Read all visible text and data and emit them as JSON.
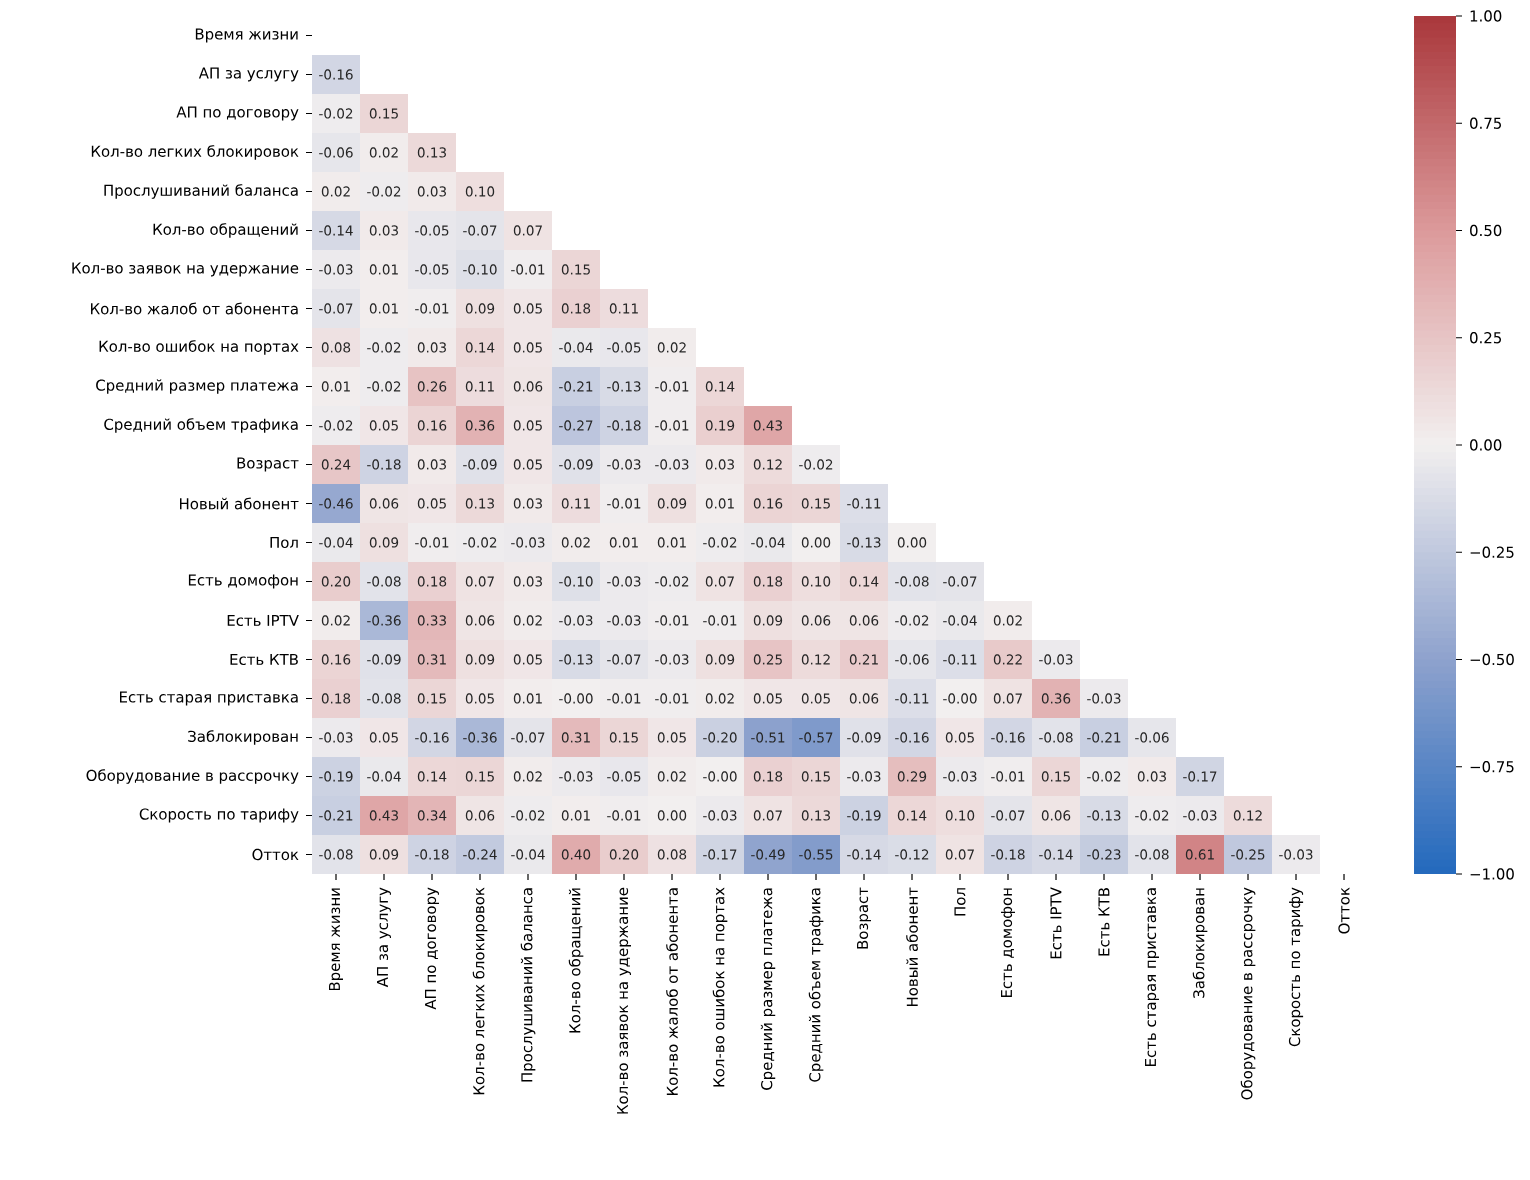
{
  "chart_data": {
    "type": "heatmap",
    "categories": [
      "Время жизни",
      "АП за услугу",
      "АП по договору",
      "Кол-во легких блокировок",
      "Прослушиваний баланса",
      "Кол-во обращений",
      "Кол-во заявок на удержание",
      "Кол-во жалоб от абонента",
      "Кол-во ошибок на портах",
      "Средний размер платежа",
      "Средний объем трафика",
      "Возраст",
      "Новый абонент",
      "Пол",
      "Есть домофон",
      "Есть IPTV",
      "Есть КТВ",
      "Есть старая приставка",
      "Заблокирован",
      "Оборудование в рассрочку",
      "Скорость по тарифу",
      "Отток"
    ],
    "y_categories": [
      "Время жизни",
      "АП за услугу",
      "АП по договору",
      "Кол-во легких блокировок",
      "Прослушиваний баланса",
      "Кол-во обращений",
      "Кол-во заявок на удержание",
      "Кол-во жалоб от абонента",
      "Кол-во ошибок на портах",
      "Средний размер платежа",
      "Средний объем трафика",
      "Возраст",
      "Новый абонент",
      "Пол",
      "Есть домофон",
      "Есть IPTV",
      "Есть КТВ",
      "Есть старая приставка",
      "Заблокирован",
      "Оборудование в рассрочку",
      "Скорость по тарифу",
      "Отток"
    ],
    "cells": [
      [
        null,
        null,
        null,
        null,
        null,
        null,
        null,
        null,
        null,
        null,
        null,
        null,
        null,
        null,
        null,
        null,
        null,
        null,
        null,
        null,
        null,
        null
      ],
      [
        -0.16,
        null,
        null,
        null,
        null,
        null,
        null,
        null,
        null,
        null,
        null,
        null,
        null,
        null,
        null,
        null,
        null,
        null,
        null,
        null,
        null,
        null
      ],
      [
        -0.02,
        0.15,
        null,
        null,
        null,
        null,
        null,
        null,
        null,
        null,
        null,
        null,
        null,
        null,
        null,
        null,
        null,
        null,
        null,
        null,
        null,
        null
      ],
      [
        -0.06,
        0.02,
        0.13,
        null,
        null,
        null,
        null,
        null,
        null,
        null,
        null,
        null,
        null,
        null,
        null,
        null,
        null,
        null,
        null,
        null,
        null,
        null
      ],
      [
        0.02,
        -0.02,
        0.03,
        0.1,
        null,
        null,
        null,
        null,
        null,
        null,
        null,
        null,
        null,
        null,
        null,
        null,
        null,
        null,
        null,
        null,
        null,
        null
      ],
      [
        -0.14,
        0.03,
        -0.05,
        -0.07,
        0.07,
        null,
        null,
        null,
        null,
        null,
        null,
        null,
        null,
        null,
        null,
        null,
        null,
        null,
        null,
        null,
        null,
        null
      ],
      [
        -0.03,
        0.01,
        -0.05,
        -0.1,
        -0.01,
        0.15,
        null,
        null,
        null,
        null,
        null,
        null,
        null,
        null,
        null,
        null,
        null,
        null,
        null,
        null,
        null,
        null
      ],
      [
        -0.07,
        0.01,
        -0.01,
        0.09,
        0.05,
        0.18,
        0.11,
        null,
        null,
        null,
        null,
        null,
        null,
        null,
        null,
        null,
        null,
        null,
        null,
        null,
        null,
        null
      ],
      [
        0.08,
        -0.02,
        0.03,
        0.14,
        0.05,
        -0.04,
        -0.05,
        0.02,
        null,
        null,
        null,
        null,
        null,
        null,
        null,
        null,
        null,
        null,
        null,
        null,
        null,
        null
      ],
      [
        0.01,
        -0.02,
        0.26,
        0.11,
        0.06,
        -0.21,
        -0.13,
        -0.01,
        0.14,
        null,
        null,
        null,
        null,
        null,
        null,
        null,
        null,
        null,
        null,
        null,
        null,
        null
      ],
      [
        -0.02,
        0.05,
        0.16,
        0.36,
        0.05,
        -0.27,
        -0.18,
        -0.01,
        0.19,
        0.43,
        null,
        null,
        null,
        null,
        null,
        null,
        null,
        null,
        null,
        null,
        null,
        null
      ],
      [
        0.24,
        -0.18,
        0.03,
        -0.09,
        0.05,
        -0.09,
        -0.03,
        -0.03,
        0.03,
        0.12,
        -0.02,
        null,
        null,
        null,
        null,
        null,
        null,
        null,
        null,
        null,
        null,
        null
      ],
      [
        -0.46,
        0.06,
        0.05,
        0.13,
        0.03,
        0.11,
        -0.01,
        0.09,
        0.01,
        0.16,
        0.15,
        -0.11,
        null,
        null,
        null,
        null,
        null,
        null,
        null,
        null,
        null,
        null
      ],
      [
        -0.04,
        0.09,
        -0.01,
        -0.02,
        -0.03,
        0.02,
        0.01,
        0.01,
        -0.02,
        -0.04,
        0.0,
        -0.13,
        0.0,
        null,
        null,
        null,
        null,
        null,
        null,
        null,
        null,
        null
      ],
      [
        0.2,
        -0.08,
        0.18,
        0.07,
        0.03,
        -0.1,
        -0.03,
        -0.02,
        0.07,
        0.18,
        0.1,
        0.14,
        -0.08,
        -0.07,
        null,
        null,
        null,
        null,
        null,
        null,
        null,
        null
      ],
      [
        0.02,
        -0.36,
        0.33,
        0.06,
        0.02,
        -0.03,
        -0.03,
        -0.01,
        -0.01,
        0.09,
        0.06,
        0.06,
        -0.02,
        -0.04,
        0.02,
        null,
        null,
        null,
        null,
        null,
        null,
        null
      ],
      [
        0.16,
        -0.09,
        0.31,
        0.09,
        0.05,
        -0.13,
        -0.07,
        -0.03,
        0.09,
        0.25,
        0.12,
        0.21,
        -0.06,
        -0.11,
        0.22,
        -0.03,
        null,
        null,
        null,
        null,
        null,
        null
      ],
      [
        0.18,
        -0.08,
        0.15,
        0.05,
        0.01,
        -0.0,
        -0.01,
        -0.01,
        0.02,
        0.05,
        0.05,
        0.06,
        -0.11,
        -0.0,
        0.07,
        0.36,
        -0.03,
        null,
        null,
        null,
        null,
        null
      ],
      [
        -0.03,
        0.05,
        -0.16,
        -0.36,
        -0.07,
        0.31,
        0.15,
        0.05,
        -0.2,
        -0.51,
        -0.57,
        -0.09,
        -0.16,
        0.05,
        -0.16,
        -0.08,
        -0.21,
        -0.06,
        null,
        null,
        null,
        null
      ],
      [
        -0.19,
        -0.04,
        0.14,
        0.15,
        0.02,
        -0.03,
        -0.05,
        0.02,
        -0.0,
        0.18,
        0.15,
        -0.03,
        0.29,
        -0.03,
        -0.01,
        0.15,
        -0.02,
        0.03,
        -0.17,
        null,
        null,
        null
      ],
      [
        -0.21,
        0.43,
        0.34,
        0.06,
        -0.02,
        0.01,
        -0.01,
        0.0,
        -0.03,
        0.07,
        0.13,
        -0.19,
        0.14,
        0.1,
        -0.07,
        0.06,
        -0.13,
        -0.02,
        -0.03,
        0.12,
        null,
        null
      ],
      [
        -0.08,
        0.09,
        -0.18,
        -0.24,
        -0.04,
        0.4,
        0.2,
        0.08,
        -0.17,
        -0.49,
        -0.55,
        -0.14,
        -0.12,
        0.07,
        -0.18,
        -0.14,
        -0.23,
        -0.08,
        0.61,
        -0.25,
        -0.03,
        null
      ]
    ],
    "cell_labels": [
      [
        null,
        null,
        null,
        null,
        null,
        null,
        null,
        null,
        null,
        null,
        null,
        null,
        null,
        null,
        null,
        null,
        null,
        null,
        null,
        null,
        null,
        null
      ],
      [
        "-0.16",
        null,
        null,
        null,
        null,
        null,
        null,
        null,
        null,
        null,
        null,
        null,
        null,
        null,
        null,
        null,
        null,
        null,
        null,
        null,
        null,
        null
      ],
      [
        "-0.02",
        "0.15",
        null,
        null,
        null,
        null,
        null,
        null,
        null,
        null,
        null,
        null,
        null,
        null,
        null,
        null,
        null,
        null,
        null,
        null,
        null,
        null
      ],
      [
        "-0.06",
        "0.02",
        "0.13",
        null,
        null,
        null,
        null,
        null,
        null,
        null,
        null,
        null,
        null,
        null,
        null,
        null,
        null,
        null,
        null,
        null,
        null,
        null
      ],
      [
        "0.02",
        "-0.02",
        "0.03",
        "0.10",
        null,
        null,
        null,
        null,
        null,
        null,
        null,
        null,
        null,
        null,
        null,
        null,
        null,
        null,
        null,
        null,
        null,
        null
      ],
      [
        "-0.14",
        "0.03",
        "-0.05",
        "-0.07",
        "0.07",
        null,
        null,
        null,
        null,
        null,
        null,
        null,
        null,
        null,
        null,
        null,
        null,
        null,
        null,
        null,
        null,
        null
      ],
      [
        "-0.03",
        "0.01",
        "-0.05",
        "-0.10",
        "-0.01",
        "0.15",
        null,
        null,
        null,
        null,
        null,
        null,
        null,
        null,
        null,
        null,
        null,
        null,
        null,
        null,
        null,
        null
      ],
      [
        "-0.07",
        "0.01",
        "-0.01",
        "0.09",
        "0.05",
        "0.18",
        "0.11",
        null,
        null,
        null,
        null,
        null,
        null,
        null,
        null,
        null,
        null,
        null,
        null,
        null,
        null,
        null
      ],
      [
        "0.08",
        "-0.02",
        "0.03",
        "0.14",
        "0.05",
        "-0.04",
        "-0.05",
        "0.02",
        null,
        null,
        null,
        null,
        null,
        null,
        null,
        null,
        null,
        null,
        null,
        null,
        null,
        null
      ],
      [
        "0.01",
        "-0.02",
        "0.26",
        "0.11",
        "0.06",
        "-0.21",
        "-0.13",
        "-0.01",
        "0.14",
        null,
        null,
        null,
        null,
        null,
        null,
        null,
        null,
        null,
        null,
        null,
        null,
        null
      ],
      [
        "-0.02",
        "0.05",
        "0.16",
        "0.36",
        "0.05",
        "-0.27",
        "-0.18",
        "-0.01",
        "0.19",
        "0.43",
        null,
        null,
        null,
        null,
        null,
        null,
        null,
        null,
        null,
        null,
        null,
        null
      ],
      [
        "0.24",
        "-0.18",
        "0.03",
        "-0.09",
        "0.05",
        "-0.09",
        "-0.03",
        "-0.03",
        "0.03",
        "0.12",
        "-0.02",
        null,
        null,
        null,
        null,
        null,
        null,
        null,
        null,
        null,
        null,
        null
      ],
      [
        "-0.46",
        "0.06",
        "0.05",
        "0.13",
        "0.03",
        "0.11",
        "-0.01",
        "0.09",
        "0.01",
        "0.16",
        "0.15",
        "-0.11",
        null,
        null,
        null,
        null,
        null,
        null,
        null,
        null,
        null,
        null
      ],
      [
        "-0.04",
        "0.09",
        "-0.01",
        "-0.02",
        "-0.03",
        "0.02",
        "0.01",
        "0.01",
        "-0.02",
        "-0.04",
        "0.00",
        "-0.13",
        "0.00",
        null,
        null,
        null,
        null,
        null,
        null,
        null,
        null,
        null
      ],
      [
        "0.20",
        "-0.08",
        "0.18",
        "0.07",
        "0.03",
        "-0.10",
        "-0.03",
        "-0.02",
        "0.07",
        "0.18",
        "0.10",
        "0.14",
        "-0.08",
        "-0.07",
        null,
        null,
        null,
        null,
        null,
        null,
        null,
        null
      ],
      [
        "0.02",
        "-0.36",
        "0.33",
        "0.06",
        "0.02",
        "-0.03",
        "-0.03",
        "-0.01",
        "-0.01",
        "0.09",
        "0.06",
        "0.06",
        "-0.02",
        "-0.04",
        "0.02",
        null,
        null,
        null,
        null,
        null,
        null,
        null
      ],
      [
        "0.16",
        "-0.09",
        "0.31",
        "0.09",
        "0.05",
        "-0.13",
        "-0.07",
        "-0.03",
        "0.09",
        "0.25",
        "0.12",
        "0.21",
        "-0.06",
        "-0.11",
        "0.22",
        "-0.03",
        null,
        null,
        null,
        null,
        null,
        null
      ],
      [
        "0.18",
        "-0.08",
        "0.15",
        "0.05",
        "0.01",
        "-0.00",
        "-0.01",
        "-0.01",
        "0.02",
        "0.05",
        "0.05",
        "0.06",
        "-0.11",
        "-0.00",
        "0.07",
        "0.36",
        "-0.03",
        null,
        null,
        null,
        null,
        null
      ],
      [
        "-0.03",
        "0.05",
        "-0.16",
        "-0.36",
        "-0.07",
        "0.31",
        "0.15",
        "0.05",
        "-0.20",
        "-0.51",
        "-0.57",
        "-0.09",
        "-0.16",
        "0.05",
        "-0.16",
        "-0.08",
        "-0.21",
        "-0.06",
        null,
        null,
        null,
        null
      ],
      [
        "-0.19",
        "-0.04",
        "0.14",
        "0.15",
        "0.02",
        "-0.03",
        "-0.05",
        "0.02",
        "-0.00",
        "0.18",
        "0.15",
        "-0.03",
        "0.29",
        "-0.03",
        "-0.01",
        "0.15",
        "-0.02",
        "0.03",
        "-0.17",
        null,
        null,
        null
      ],
      [
        "-0.21",
        "0.43",
        "0.34",
        "0.06",
        "-0.02",
        "0.01",
        "-0.01",
        "0.00",
        "-0.03",
        "0.07",
        "0.13",
        "-0.19",
        "0.14",
        "0.10",
        "-0.07",
        "0.06",
        "-0.13",
        "-0.02",
        "-0.03",
        "0.12",
        null,
        null
      ],
      [
        "-0.08",
        "0.09",
        "-0.18",
        "-0.24",
        "-0.04",
        "0.40",
        "0.20",
        "0.08",
        "-0.17",
        "-0.49",
        "-0.55",
        "-0.14",
        "-0.12",
        "0.07",
        "-0.18",
        "-0.14",
        "-0.23",
        "-0.08",
        "0.61",
        "-0.25",
        "-0.03",
        null
      ]
    ],
    "clim": [
      -1,
      1
    ],
    "cticks": [
      {
        "value": -1,
        "label": "−1.00"
      },
      {
        "value": -0.75,
        "label": "−0.75"
      },
      {
        "value": -0.5,
        "label": "−0.50"
      },
      {
        "value": -0.25,
        "label": "−0.25"
      },
      {
        "value": 0,
        "label": "0.00"
      },
      {
        "value": 0.25,
        "label": "0.25"
      },
      {
        "value": 0.5,
        "label": "0.50"
      },
      {
        "value": 0.75,
        "label": "0.75"
      },
      {
        "value": 1,
        "label": "1.00"
      }
    ],
    "data_labels": true
  }
}
